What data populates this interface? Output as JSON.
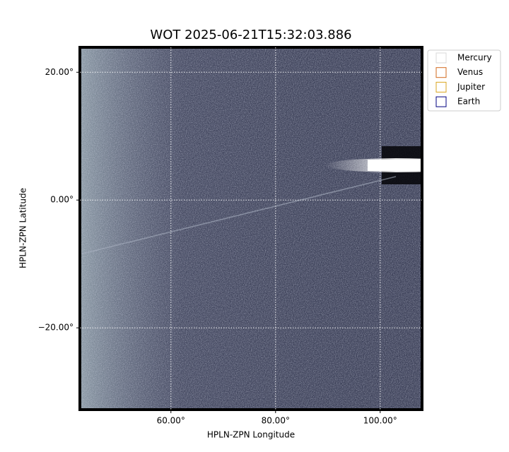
{
  "chart_data": {
    "type": "image",
    "title": "WOT 2025-06-21T15:32:03.886",
    "xlabel": "HPLN-ZPN Longitude",
    "ylabel": "HPLN-ZPN Latitude",
    "xlim": [
      42.6,
      108
    ],
    "ylim": [
      -32.8,
      23.9
    ],
    "xticks": [
      {
        "value": 60,
        "label": "60.00°"
      },
      {
        "value": 80,
        "label": "80.00°"
      },
      {
        "value": 100,
        "label": "100.00°"
      }
    ],
    "yticks": [
      {
        "value": -20,
        "label": "−20.00°"
      },
      {
        "value": 0,
        "label": "0.00°"
      },
      {
        "value": 20,
        "label": "20.00°"
      }
    ],
    "grid": true,
    "legend_position": "outside upper right",
    "series": [
      {
        "name": "Mercury",
        "color": "#d8d8d8"
      },
      {
        "name": "Venus",
        "color": "#d2691e"
      },
      {
        "name": "Jupiter",
        "color": "#daa520"
      },
      {
        "name": "Earth",
        "color": "#000080"
      }
    ]
  }
}
